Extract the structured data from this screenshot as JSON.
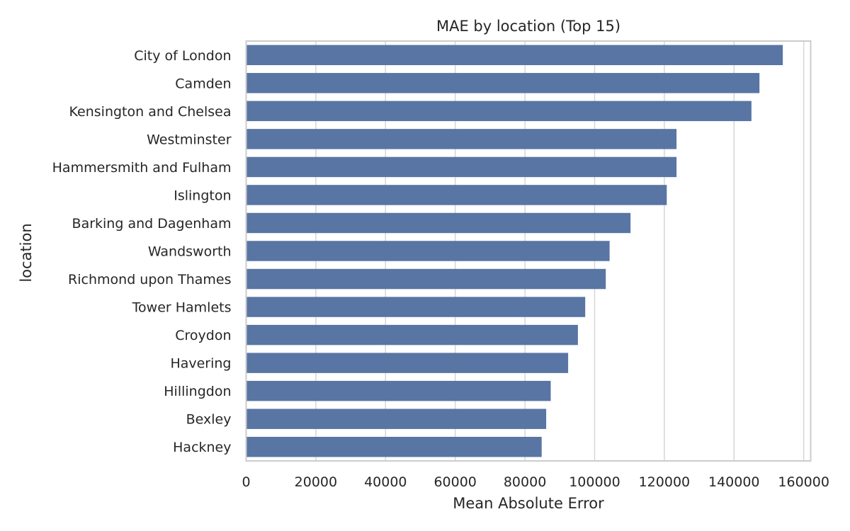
{
  "chart_data": {
    "type": "bar",
    "orientation": "horizontal",
    "title": "MAE by location (Top 15)",
    "xlabel": "Mean Absolute Error",
    "ylabel": "location",
    "xlim": [
      0,
      162000
    ],
    "xticks": [
      "0",
      "20000",
      "40000",
      "60000",
      "80000",
      "100000",
      "120000",
      "140000",
      "160000"
    ],
    "xtick_values": [
      0,
      20000,
      40000,
      60000,
      80000,
      100000,
      120000,
      140000,
      160000
    ],
    "grid": true,
    "bar_color": "#5875a4",
    "categories": [
      "City of London",
      "Camden",
      "Kensington and Chelsea",
      "Westminster",
      "Hammersmith and Fulham",
      "Islington",
      "Barking and Dagenham",
      "Wandsworth",
      "Richmond upon Thames",
      "Tower Hamlets",
      "Croydon",
      "Havering",
      "Hillingdon",
      "Bexley",
      "Hackney"
    ],
    "values": [
      154000,
      147300,
      145000,
      123500,
      123500,
      120700,
      110300,
      104300,
      103200,
      97300,
      95200,
      92400,
      87400,
      86100,
      84800
    ]
  }
}
